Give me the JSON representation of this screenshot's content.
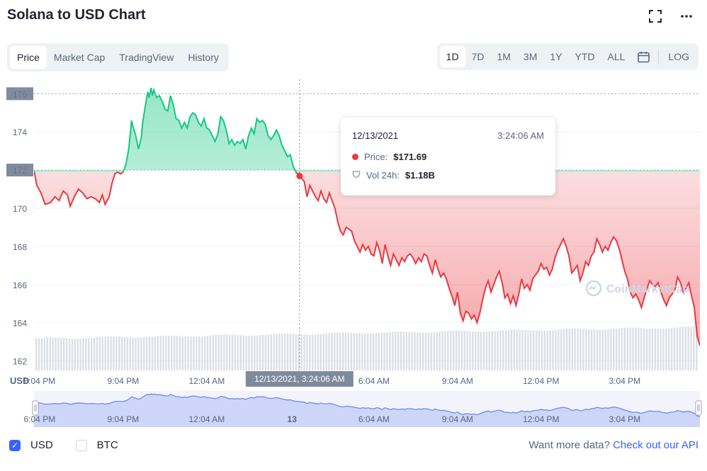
{
  "title": "Solana to USD Chart",
  "icons": {
    "fullscreen": "fullscreen-icon",
    "more": "more-icon",
    "calendar": "calendar-icon"
  },
  "tabs": [
    {
      "label": "Price",
      "active": true
    },
    {
      "label": "Market Cap",
      "active": false
    },
    {
      "label": "TradingView",
      "active": false
    },
    {
      "label": "History",
      "active": false
    }
  ],
  "ranges": [
    {
      "label": "1D",
      "active": true
    },
    {
      "label": "7D",
      "active": false
    },
    {
      "label": "1M",
      "active": false
    },
    {
      "label": "3M",
      "active": false
    },
    {
      "label": "1Y",
      "active": false
    },
    {
      "label": "YTD",
      "active": false
    },
    {
      "label": "ALL",
      "active": false
    }
  ],
  "log_label": "LOG",
  "currency_label": "USD",
  "tooltip": {
    "date": "12/13/2021",
    "time": "3:24:06 AM",
    "price_label": "Price:",
    "price_value": "$171.69",
    "vol_label": "Vol 24h:",
    "vol_value": "$1.18B"
  },
  "crosshair_label": "12/13/2021, 3:24:06 AM",
  "watermark": "CoinMarketCap",
  "footer": {
    "usd_label": "USD",
    "btc_label": "BTC",
    "more_data_text": "Want more data?",
    "api_link": "Check out our API"
  },
  "colors": {
    "up": "#16c784",
    "down": "#ea3943",
    "accent": "#3861fb"
  },
  "chart_data": {
    "type": "line",
    "ylim": [
      161.5,
      177.2
    ],
    "yticks": [
      162,
      164,
      166,
      168,
      170,
      172,
      174,
      176
    ],
    "reference_price": 172,
    "x_ticks": [
      {
        "label": "6:04 PM",
        "h": 0
      },
      {
        "label": "9:04 PM",
        "h": 3
      },
      {
        "label": "12:04 AM",
        "h": 6
      },
      {
        "label": "6:04 AM",
        "h": 12
      },
      {
        "label": "9:04 AM",
        "h": 15
      },
      {
        "label": "12:04 PM",
        "h": 18
      },
      {
        "label": "3:04 PM",
        "h": 21
      }
    ],
    "navigator_ticks": [
      {
        "label": "6:04 PM",
        "h": 0
      },
      {
        "label": "9:04 PM",
        "h": 3
      },
      {
        "label": "12:04 AM",
        "h": 6
      },
      {
        "label": "13",
        "h": 9.06
      },
      {
        "label": "6:04 AM",
        "h": 12
      },
      {
        "label": "9:04 AM",
        "h": 15
      },
      {
        "label": "12:04 PM",
        "h": 18
      },
      {
        "label": "3:04 PM",
        "h": 21
      }
    ],
    "x_range_hours": [
      -0.2,
      23.7
    ],
    "crosshair": {
      "h": 9.33,
      "price": 171.69
    },
    "series": [
      {
        "values": [
          [
            -0.2,
            172.0
          ],
          [
            -0.1,
            171.2
          ],
          [
            0.05,
            170.8
          ],
          [
            0.2,
            170.2
          ],
          [
            0.4,
            170.3
          ],
          [
            0.55,
            170.6
          ],
          [
            0.7,
            170.4
          ],
          [
            0.85,
            170.9
          ],
          [
            1.0,
            170.7
          ],
          [
            1.1,
            170.1
          ],
          [
            1.25,
            170.6
          ],
          [
            1.4,
            171.0
          ],
          [
            1.55,
            170.8
          ],
          [
            1.7,
            170.5
          ],
          [
            1.85,
            170.6
          ],
          [
            2.0,
            170.5
          ],
          [
            2.15,
            170.3
          ],
          [
            2.25,
            170.7
          ],
          [
            2.35,
            170.2
          ],
          [
            2.5,
            170.6
          ],
          [
            2.6,
            171.3
          ],
          [
            2.7,
            171.8
          ],
          [
            2.8,
            171.9
          ],
          [
            2.9,
            171.8
          ],
          [
            3.0,
            171.9
          ],
          [
            3.1,
            172.3
          ],
          [
            3.2,
            173.1
          ],
          [
            3.3,
            174.6
          ],
          [
            3.35,
            174.3
          ],
          [
            3.45,
            173.8
          ],
          [
            3.55,
            173.1
          ],
          [
            3.65,
            173.7
          ],
          [
            3.7,
            174.5
          ],
          [
            3.8,
            175.4
          ],
          [
            3.88,
            176.1
          ],
          [
            3.93,
            175.8
          ],
          [
            4.0,
            176.3
          ],
          [
            4.05,
            175.9
          ],
          [
            4.1,
            176.2
          ],
          [
            4.2,
            175.8
          ],
          [
            4.3,
            175.9
          ],
          [
            4.4,
            175.6
          ],
          [
            4.5,
            175.2
          ],
          [
            4.6,
            175.1
          ],
          [
            4.7,
            175.9
          ],
          [
            4.8,
            175.4
          ],
          [
            4.9,
            174.7
          ],
          [
            5.0,
            174.6
          ],
          [
            5.1,
            174.2
          ],
          [
            5.2,
            174.5
          ],
          [
            5.3,
            174.2
          ],
          [
            5.4,
            174.8
          ],
          [
            5.5,
            175.0
          ],
          [
            5.6,
            174.9
          ],
          [
            5.7,
            174.5
          ],
          [
            5.8,
            174.3
          ],
          [
            5.9,
            174.7
          ],
          [
            6.0,
            174.2
          ],
          [
            6.1,
            174.1
          ],
          [
            6.2,
            173.8
          ],
          [
            6.3,
            173.5
          ],
          [
            6.4,
            173.9
          ],
          [
            6.5,
            174.8
          ],
          [
            6.6,
            174.6
          ],
          [
            6.7,
            174.1
          ],
          [
            6.8,
            173.4
          ],
          [
            6.9,
            173.6
          ],
          [
            7.0,
            173.3
          ],
          [
            7.1,
            173.5
          ],
          [
            7.2,
            173.4
          ],
          [
            7.3,
            173.6
          ],
          [
            7.4,
            173.1
          ],
          [
            7.5,
            173.8
          ],
          [
            7.6,
            174.2
          ],
          [
            7.7,
            173.9
          ],
          [
            7.8,
            174.7
          ],
          [
            7.9,
            174.5
          ],
          [
            8.0,
            174.6
          ],
          [
            8.1,
            174.4
          ],
          [
            8.2,
            173.8
          ],
          [
            8.3,
            173.6
          ],
          [
            8.4,
            173.8
          ],
          [
            8.5,
            174.1
          ],
          [
            8.6,
            173.8
          ],
          [
            8.7,
            173.3
          ],
          [
            8.8,
            173.0
          ],
          [
            8.9,
            172.7
          ],
          [
            9.0,
            172.8
          ],
          [
            9.1,
            172.2
          ],
          [
            9.2,
            171.9
          ],
          [
            9.33,
            171.69
          ],
          [
            9.5,
            171.4
          ],
          [
            9.6,
            170.6
          ],
          [
            9.7,
            171.2
          ],
          [
            9.8,
            170.9
          ],
          [
            9.9,
            170.6
          ],
          [
            10.0,
            170.4
          ],
          [
            10.1,
            170.9
          ],
          [
            10.2,
            170.5
          ],
          [
            10.3,
            170.3
          ],
          [
            10.4,
            170.8
          ],
          [
            10.5,
            170.4
          ],
          [
            10.6,
            170.0
          ],
          [
            10.7,
            169.3
          ],
          [
            10.8,
            168.8
          ],
          [
            10.9,
            168.6
          ],
          [
            11.0,
            169.0
          ],
          [
            11.1,
            168.9
          ],
          [
            11.2,
            168.8
          ],
          [
            11.3,
            168.3
          ],
          [
            11.4,
            168.0
          ],
          [
            11.5,
            167.7
          ],
          [
            11.6,
            168.1
          ],
          [
            11.7,
            167.8
          ],
          [
            11.8,
            168.0
          ],
          [
            11.9,
            167.6
          ],
          [
            12.0,
            167.5
          ],
          [
            12.1,
            168.2
          ],
          [
            12.2,
            167.8
          ],
          [
            12.3,
            167.1
          ],
          [
            12.4,
            168.1
          ],
          [
            12.5,
            167.5
          ],
          [
            12.6,
            167.0
          ],
          [
            12.7,
            167.6
          ],
          [
            12.8,
            167.3
          ],
          [
            12.9,
            167.0
          ],
          [
            13.0,
            167.4
          ],
          [
            13.1,
            167.2
          ],
          [
            13.2,
            167.5
          ],
          [
            13.3,
            167.6
          ],
          [
            13.4,
            167.4
          ],
          [
            13.5,
            167.1
          ],
          [
            13.6,
            167.4
          ],
          [
            13.7,
            167.2
          ],
          [
            13.8,
            167.6
          ],
          [
            13.9,
            167.5
          ],
          [
            14.0,
            167.0
          ],
          [
            14.1,
            166.6
          ],
          [
            14.2,
            167.3
          ],
          [
            14.3,
            166.8
          ],
          [
            14.4,
            166.4
          ],
          [
            14.5,
            166.6
          ],
          [
            14.6,
            166.3
          ],
          [
            14.7,
            165.8
          ],
          [
            14.8,
            165.4
          ],
          [
            14.9,
            164.9
          ],
          [
            15.0,
            165.6
          ],
          [
            15.1,
            164.5
          ],
          [
            15.2,
            164.1
          ],
          [
            15.3,
            164.6
          ],
          [
            15.4,
            164.5
          ],
          [
            15.5,
            164.2
          ],
          [
            15.6,
            164.4
          ],
          [
            15.7,
            164.0
          ],
          [
            15.8,
            164.5
          ],
          [
            15.9,
            165.2
          ],
          [
            16.0,
            165.8
          ],
          [
            16.1,
            166.2
          ],
          [
            16.2,
            165.6
          ],
          [
            16.3,
            166.0
          ],
          [
            16.4,
            166.4
          ],
          [
            16.5,
            166.7
          ],
          [
            16.6,
            166.1
          ],
          [
            16.7,
            165.3
          ],
          [
            16.8,
            165.5
          ],
          [
            16.9,
            165.0
          ],
          [
            17.0,
            165.4
          ],
          [
            17.1,
            164.9
          ],
          [
            17.2,
            165.5
          ],
          [
            17.3,
            166.3
          ],
          [
            17.4,
            165.8
          ],
          [
            17.5,
            166.0
          ],
          [
            17.6,
            165.7
          ],
          [
            17.7,
            166.3
          ],
          [
            17.8,
            166.5
          ],
          [
            17.9,
            166.7
          ],
          [
            18.0,
            167.1
          ],
          [
            18.1,
            166.8
          ],
          [
            18.2,
            166.9
          ],
          [
            18.3,
            166.5
          ],
          [
            18.4,
            166.8
          ],
          [
            18.5,
            167.4
          ],
          [
            18.6,
            167.8
          ],
          [
            18.7,
            168.1
          ],
          [
            18.8,
            168.4
          ],
          [
            18.9,
            168.0
          ],
          [
            19.0,
            167.5
          ],
          [
            19.1,
            166.6
          ],
          [
            19.2,
            166.8
          ],
          [
            19.3,
            167.0
          ],
          [
            19.4,
            166.2
          ],
          [
            19.5,
            166.6
          ],
          [
            19.6,
            167.2
          ],
          [
            19.7,
            167.0
          ],
          [
            19.8,
            167.5
          ],
          [
            19.9,
            167.7
          ],
          [
            20.0,
            168.4
          ],
          [
            20.1,
            168.1
          ],
          [
            20.2,
            167.7
          ],
          [
            20.3,
            168.0
          ],
          [
            20.4,
            167.8
          ],
          [
            20.5,
            168.2
          ],
          [
            20.6,
            168.5
          ],
          [
            20.7,
            168.3
          ],
          [
            20.8,
            167.9
          ],
          [
            20.9,
            167.3
          ],
          [
            21.0,
            166.7
          ],
          [
            21.1,
            166.3
          ],
          [
            21.2,
            165.6
          ],
          [
            21.3,
            165.3
          ],
          [
            21.4,
            165.5
          ],
          [
            21.5,
            165.2
          ],
          [
            21.6,
            164.8
          ],
          [
            21.7,
            165.3
          ],
          [
            21.8,
            165.8
          ],
          [
            21.9,
            166.2
          ],
          [
            22.0,
            166.0
          ],
          [
            22.1,
            165.9
          ],
          [
            22.2,
            166.1
          ],
          [
            22.3,
            165.6
          ],
          [
            22.4,
            165.2
          ],
          [
            22.5,
            164.9
          ],
          [
            22.6,
            165.3
          ],
          [
            22.7,
            165.5
          ],
          [
            22.8,
            165.7
          ],
          [
            22.9,
            166.4
          ],
          [
            23.0,
            166.1
          ],
          [
            23.1,
            165.6
          ],
          [
            23.2,
            165.8
          ],
          [
            23.3,
            166.1
          ],
          [
            23.4,
            165.4
          ],
          [
            23.5,
            164.8
          ],
          [
            23.6,
            163.3
          ],
          [
            23.7,
            162.8
          ]
        ]
      }
    ]
  }
}
